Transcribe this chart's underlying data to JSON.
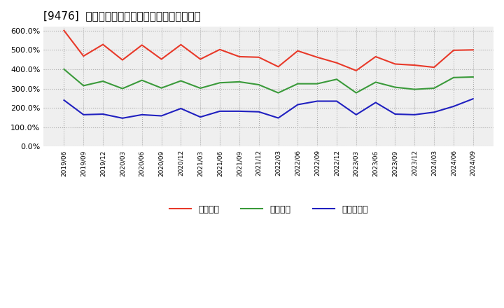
{
  "title": "[9476]  流動比率、当座比率、現頲金比率の推移",
  "x_labels": [
    "2019/06",
    "2019/09",
    "2019/12",
    "2020/03",
    "2020/06",
    "2020/09",
    "2020/12",
    "2021/03",
    "2021/06",
    "2021/09",
    "2021/12",
    "2022/03",
    "2022/06",
    "2022/09",
    "2022/12",
    "2023/03",
    "2023/06",
    "2023/09",
    "2023/12",
    "2024/03",
    "2024/06",
    "2024/09"
  ],
  "ryudo": [
    600,
    468,
    528,
    448,
    525,
    452,
    527,
    452,
    502,
    465,
    462,
    413,
    495,
    462,
    433,
    393,
    465,
    427,
    421,
    410,
    498,
    500
  ],
  "toza": [
    400,
    315,
    338,
    300,
    343,
    303,
    340,
    302,
    330,
    335,
    320,
    278,
    325,
    325,
    348,
    278,
    333,
    307,
    296,
    302,
    357,
    360
  ],
  "genyo": [
    240,
    165,
    168,
    147,
    165,
    159,
    197,
    153,
    183,
    183,
    180,
    148,
    217,
    235,
    235,
    165,
    228,
    168,
    165,
    178,
    208,
    247
  ],
  "line_colors": {
    "ryudo": "#e83929",
    "toza": "#3a9a3a",
    "genyo": "#2020c0"
  },
  "legend_labels": {
    "ryudo": "流動比率",
    "toza": "当座比率",
    "genyo": "現頲金比率"
  },
  "ylim": [
    0,
    620
  ],
  "yticks": [
    0,
    100,
    200,
    300,
    400,
    500,
    600
  ],
  "bg_color": "#ffffff",
  "plot_bg_color": "#efefef",
  "grid_color": "#aaaaaa",
  "title_fontsize": 11
}
